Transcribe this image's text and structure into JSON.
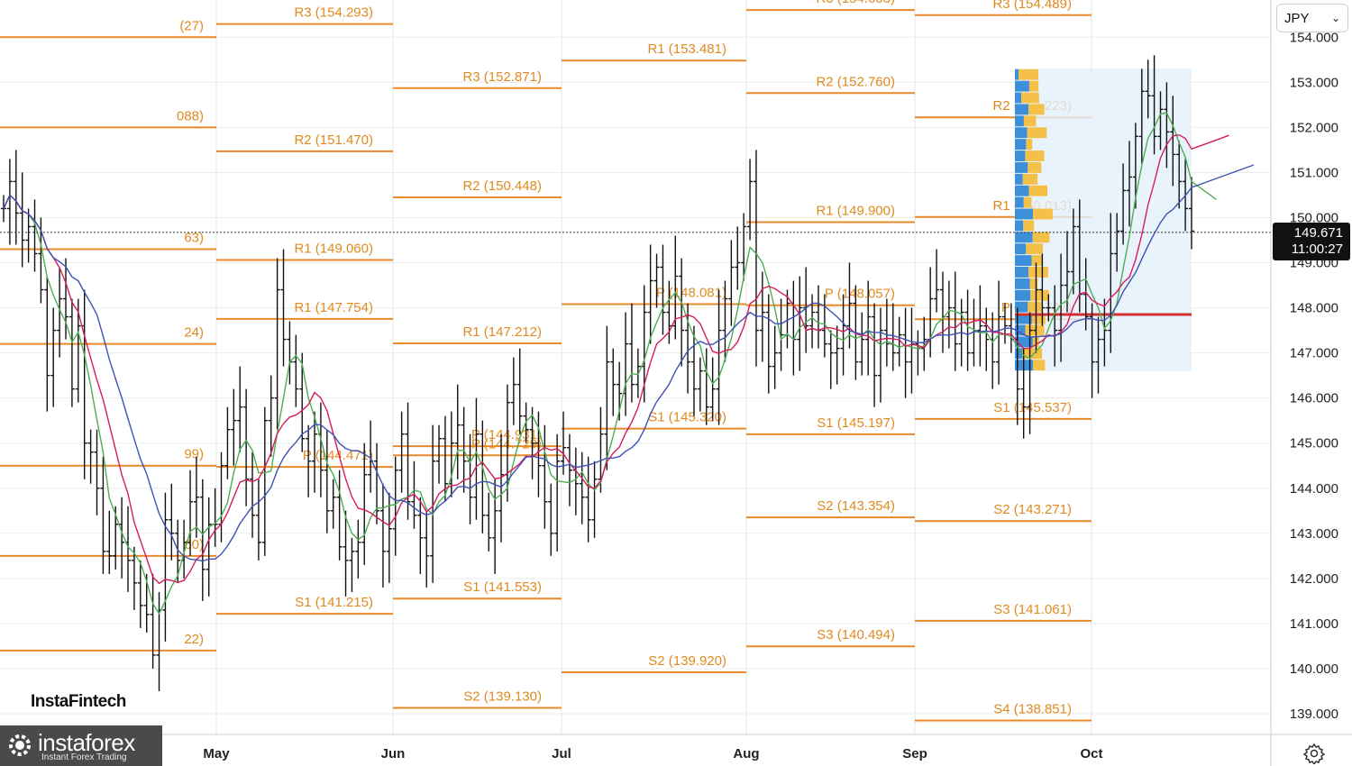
{
  "chart_data": {
    "type": "ohlc",
    "symbol": "JPY",
    "current_price": "149.671",
    "countdown": "11:00:27",
    "ylim": [
      138.5,
      154.8
    ],
    "y_ticks": [
      "139.000",
      "140.000",
      "141.000",
      "142.000",
      "143.000",
      "144.000",
      "145.000",
      "146.000",
      "147.000",
      "148.000",
      "149.000",
      "150.000",
      "151.000",
      "152.000",
      "153.000",
      "154.000"
    ],
    "x_labels": [
      "May",
      "Jun",
      "Jul",
      "Aug",
      "Sep",
      "Oct"
    ],
    "pivot_levels": [
      {
        "label": "(27)",
        "value": 154.0,
        "period": 0
      },
      {
        "label": "088)",
        "value": 152.0,
        "period": 0
      },
      {
        "label": "63)",
        "value": 149.3,
        "period": 0
      },
      {
        "label": "24)",
        "value": 147.2,
        "period": 0
      },
      {
        "label": "99)",
        "value": 144.5,
        "period": 0
      },
      {
        "label": "60)",
        "value": 142.5,
        "period": 0
      },
      {
        "label": "22)",
        "value": 140.4,
        "period": 0
      },
      {
        "label": "R3 (154.293)",
        "value": 154.293,
        "period": 1
      },
      {
        "label": "R2 (151.470)",
        "value": 151.47,
        "period": 1
      },
      {
        "label": "R1 (149.060)",
        "value": 149.06,
        "period": 1
      },
      {
        "label": "R1 (147.754)",
        "value": 147.754,
        "period": 1
      },
      {
        "label": "P (144.471)",
        "value": 144.471,
        "period": 1
      },
      {
        "label": "S1 (141.215)",
        "value": 141.215,
        "period": 1
      },
      {
        "label": "P (144.931)",
        "value": 144.931,
        "period": 2
      },
      {
        "label": "R3 (152.871)",
        "value": 152.871,
        "period": 2
      },
      {
        "label": "R2 (150.448)",
        "value": 150.448,
        "period": 2
      },
      {
        "label": "R1 (147.212)",
        "value": 147.212,
        "period": 2
      },
      {
        "label": "P (144.729)",
        "value": 144.729,
        "period": 2
      },
      {
        "label": "S1 (141.553)",
        "value": 141.553,
        "period": 2
      },
      {
        "label": "S2 (139.130)",
        "value": 139.13,
        "period": 2
      },
      {
        "label": "R1 (153.481)",
        "value": 153.481,
        "period": 3
      },
      {
        "label": "P (148.081)",
        "value": 148.081,
        "period": 3
      },
      {
        "label": "S1 (145.320)",
        "value": 145.32,
        "period": 3
      },
      {
        "label": "S2 (139.920)",
        "value": 139.92,
        "period": 3
      },
      {
        "label": "R3 (154.603)",
        "value": 154.603,
        "period": 4
      },
      {
        "label": "R2 (152.760)",
        "value": 152.76,
        "period": 4
      },
      {
        "label": "R1 (149.900)",
        "value": 149.9,
        "period": 4
      },
      {
        "label": "P (148.057)",
        "value": 148.057,
        "period": 4
      },
      {
        "label": "S1 (145.197)",
        "value": 145.197,
        "period": 4
      },
      {
        "label": "S2 (143.354)",
        "value": 143.354,
        "period": 4
      },
      {
        "label": "S3 (140.494)",
        "value": 140.494,
        "period": 4
      },
      {
        "label": "R3 (154.489)",
        "value": 154.489,
        "period": 5
      },
      {
        "label": "R2 (152.223)",
        "value": 152.223,
        "period": 5
      },
      {
        "label": "R1 (150.013)",
        "value": 150.013,
        "period": 5
      },
      {
        "label": "P (147.747)",
        "value": 147.747,
        "period": 5
      },
      {
        "label": "S1 (145.537)",
        "value": 145.537,
        "period": 5
      },
      {
        "label": "S2 (143.271)",
        "value": 143.271,
        "period": 5
      },
      {
        "label": "S3 (141.061)",
        "value": 141.061,
        "period": 5
      },
      {
        "label": "S4 (138.851)",
        "value": 138.851,
        "period": 5
      }
    ],
    "closes": [
      150.2,
      150.8,
      150.1,
      149.5,
      149.8,
      149.2,
      148.4,
      146.5,
      147.5,
      148.2,
      147.8,
      146.2,
      147.6,
      145.0,
      144.8,
      144.0,
      142.6,
      142.5,
      143.2,
      142.8,
      142.4,
      141.9,
      141.4,
      141.2,
      140.3,
      141.3,
      143.3,
      143.0,
      142.4,
      142.8,
      143.7,
      143.8,
      142.2,
      143.2,
      143.2,
      144.5,
      145.3,
      145.5,
      145.8,
      144.2,
      143.4,
      142.8,
      145.5,
      146.0,
      148.4,
      147.3,
      146.8,
      146.2,
      145.1,
      144.6,
      145.2,
      144.4,
      143.5,
      143.8,
      142.7,
      142.4,
      142.6,
      142.8,
      144.3,
      144.6,
      143.5,
      142.6,
      143.1,
      144.4,
      145.2,
      143.7,
      143.4,
      142.9,
      142.5,
      144.6,
      145.1,
      144.1,
      145.0,
      145.4,
      144.6,
      143.8,
      145.2,
      143.4,
      142.9,
      143.5,
      144.3,
      145.9,
      146.3,
      145.6,
      145.3,
      145.0,
      144.5,
      143.7,
      143.0,
      144.6,
      144.9,
      144.4,
      144.1,
      143.8,
      143.3,
      144.2,
      145.2,
      146.8,
      146.3,
      146.1,
      147.2,
      146.3,
      146.7,
      147.9,
      148.6,
      148.9,
      147.9,
      147.6,
      148.7,
      147.5,
      146.8,
      146.2,
      146.6,
      145.8,
      146.2,
      147.5,
      148.2,
      148.9,
      149.0,
      149.8,
      150.8,
      147.5,
      147.9,
      146.7,
      147.0,
      147.4,
      148.1,
      147.3,
      148.0,
      147.6,
      147.9,
      147.5,
      147.2,
      147.0,
      147.1,
      147.6,
      148.1,
      146.8,
      147.3,
      147.8,
      146.5,
      147.5,
      147.2,
      147.0,
      147.4,
      146.8,
      147.2,
      147.1,
      147.3,
      148.2,
      148.4,
      147.8,
      148.0,
      147.2,
      147.9,
      147.0,
      147.5,
      147.6,
      147.3,
      146.8,
      147.8,
      147.6,
      147.3,
      146.2,
      145.8,
      147.5,
      148.4,
      148.0,
      148.0,
      147.5,
      148.5,
      148.8,
      149.8,
      148.3,
      147.8,
      146.8,
      147.3,
      147.5,
      149.2,
      149.7,
      150.6,
      150.9,
      151.8,
      152.8,
      152.7,
      151.8,
      152.4,
      151.9,
      151.4,
      150.8,
      150.2,
      149.7
    ]
  }
}
